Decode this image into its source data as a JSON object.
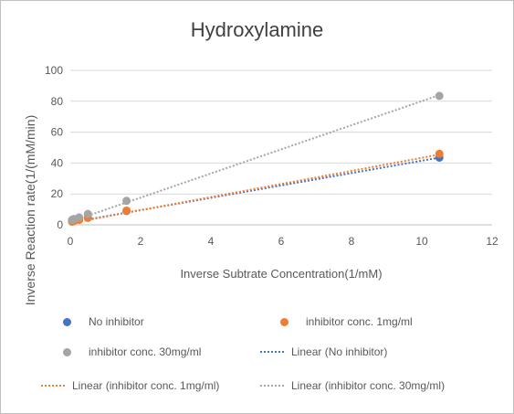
{
  "chart_data": {
    "type": "scatter",
    "title": "Hydroxylamine",
    "xlabel": "Inverse Subtrate Concentration(1/mM)",
    "ylabel": "Inverse Reaction rate(1/(mM/min)",
    "xlim": [
      0,
      12
    ],
    "ylim": [
      0,
      100
    ],
    "xticks": [
      "0",
      "2",
      "4",
      "6",
      "8",
      "10",
      "12"
    ],
    "yticks": [
      "0",
      "20",
      "40",
      "60",
      "80",
      "100"
    ],
    "grid": "horizontal",
    "legend_position": "bottom",
    "series": [
      {
        "name": "No inhibitor",
        "color": "#4472c4",
        "points": [
          [
            0.05,
            2.5
          ],
          [
            0.1,
            3.0
          ],
          [
            0.25,
            3.7
          ],
          [
            0.5,
            4.8
          ],
          [
            1.6,
            9.0
          ],
          [
            10.5,
            43.5
          ]
        ]
      },
      {
        "name": "inhibitor conc. 1mg/ml",
        "color": "#ed7d31",
        "points": [
          [
            0.05,
            2.0
          ],
          [
            0.1,
            2.5
          ],
          [
            0.25,
            3.2
          ],
          [
            0.5,
            4.5
          ],
          [
            1.6,
            9.2
          ],
          [
            10.5,
            46.0
          ]
        ]
      },
      {
        "name": "inhibitor conc. 30mg/ml",
        "color": "#a5a5a5",
        "points": [
          [
            0.05,
            3.2
          ],
          [
            0.1,
            3.8
          ],
          [
            0.25,
            4.8
          ],
          [
            0.5,
            7.0
          ],
          [
            1.6,
            15.5
          ],
          [
            10.5,
            83.5
          ]
        ]
      }
    ],
    "trendlines": [
      {
        "name": "Linear (No inhibitor)",
        "color": "#4472c4",
        "from": [
          0,
          1.5
        ],
        "to": [
          10.5,
          43.5
        ]
      },
      {
        "name": "Linear (inhibitor conc. 1mg/ml)",
        "color": "#ed7d31",
        "from": [
          0,
          1.0
        ],
        "to": [
          10.5,
          45.5
        ]
      },
      {
        "name": "Linear (inhibitor conc. 30mg/ml)",
        "color": "#a5a5a5",
        "from": [
          0,
          2.0
        ],
        "to": [
          10.5,
          84.0
        ]
      }
    ]
  }
}
